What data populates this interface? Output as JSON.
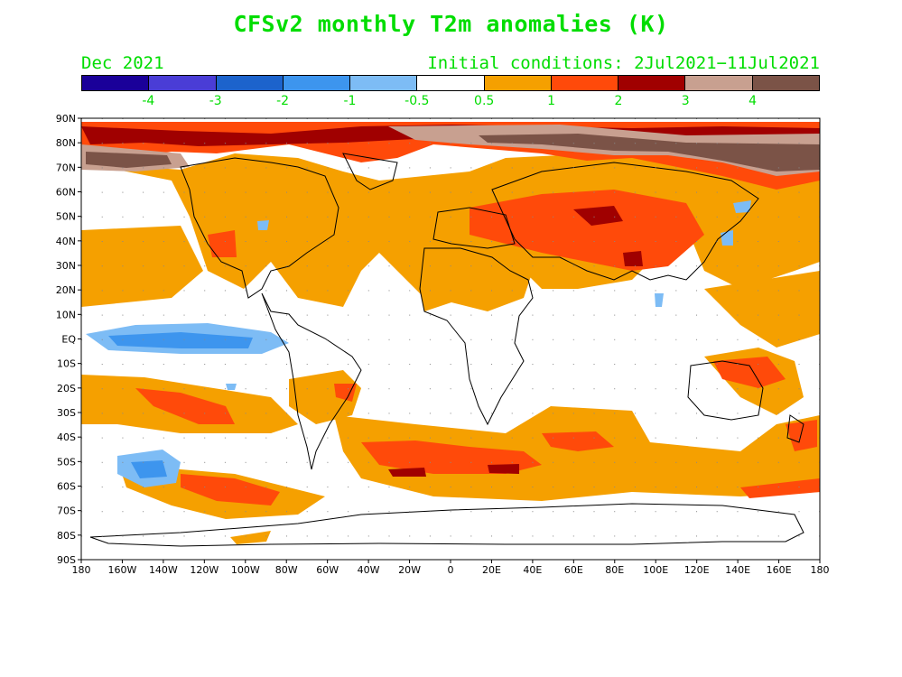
{
  "title": "CFSv2 monthly T2m anomalies (K)",
  "subtitle_left": "Dec 2021",
  "subtitle_right": "Initial conditions: 2Jul2021−11Jul2021",
  "colorbar": {
    "colors": [
      "#1a0099",
      "#4a3dd6",
      "#1c63cc",
      "#3d95ee",
      "#7dbcf5",
      "#ffffff",
      "#f5a000",
      "#ff4a0a",
      "#a00000",
      "#c8a090",
      "#7b5347"
    ],
    "labels": [
      "-4",
      "-3",
      "-2",
      "-1",
      "-0.5",
      "0.5",
      "1",
      "2",
      "3",
      "4"
    ]
  },
  "axes": {
    "lat_labels": [
      "90N",
      "80N",
      "70N",
      "60N",
      "50N",
      "40N",
      "30N",
      "20N",
      "10N",
      "EQ",
      "10S",
      "20S",
      "30S",
      "40S",
      "50S",
      "60S",
      "70S",
      "80S",
      "90S"
    ],
    "lon_labels": [
      "180",
      "160W",
      "140W",
      "120W",
      "100W",
      "80W",
      "60W",
      "40W",
      "20W",
      "0",
      "20E",
      "40E",
      "60E",
      "80E",
      "100E",
      "120E",
      "140E",
      "160E",
      "180"
    ]
  }
}
